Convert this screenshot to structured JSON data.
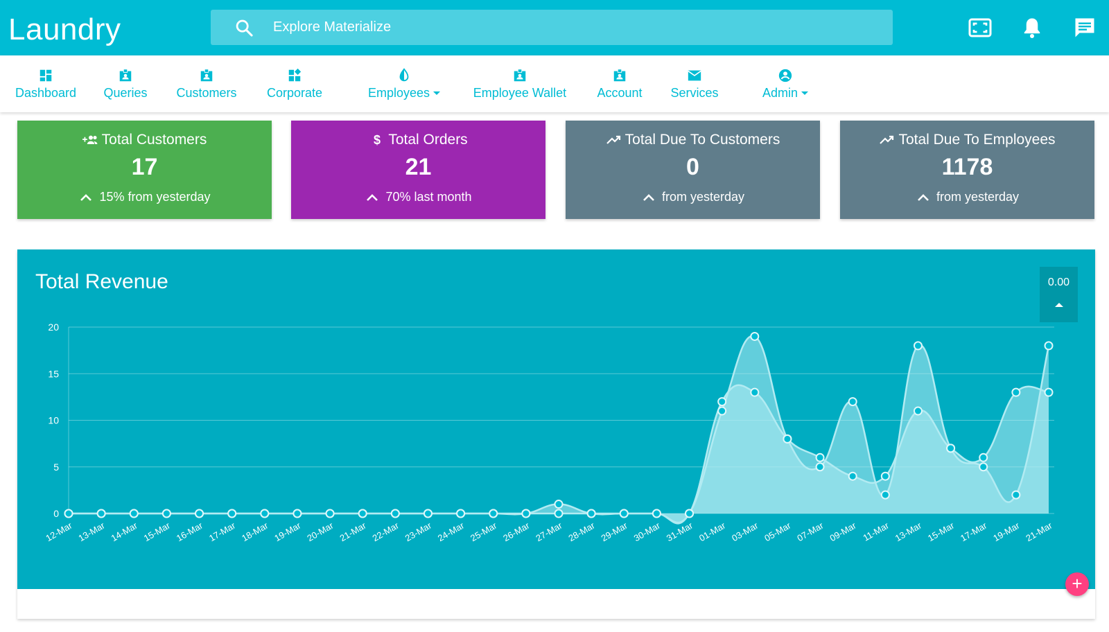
{
  "brand": "Laundry",
  "search": {
    "placeholder": "Explore Materialize"
  },
  "topbar_icons": [
    "fullscreen-icon",
    "bell-icon",
    "chat-icon"
  ],
  "nav": {
    "items": [
      {
        "label": "Dashboard",
        "icon": "dashboard-icon"
      },
      {
        "label": "Queries",
        "icon": "badge-icon"
      },
      {
        "label": "Customers",
        "icon": "badge-icon"
      },
      {
        "label": "Corporate",
        "icon": "widgets-icon"
      },
      {
        "label": "Employees",
        "icon": "invert-colors-icon",
        "dropdown": true
      },
      {
        "label": "Employee Wallet",
        "icon": "badge-icon"
      },
      {
        "label": "Account",
        "icon": "badge-icon"
      },
      {
        "label": "Services",
        "icon": "mail-icon"
      },
      {
        "label": "Admin",
        "icon": "account-circle-icon",
        "dropdown": true
      }
    ]
  },
  "cards": [
    {
      "title": "Total Customers",
      "value": "17",
      "sub": "15% from yesterday",
      "color": "#4caf50",
      "icon": "group-add-icon"
    },
    {
      "title": "Total Orders",
      "value": "21",
      "sub": "70% last month",
      "color": "#9c27b0",
      "icon": "dollar-icon"
    },
    {
      "title": "Total Due To Customers",
      "value": "0",
      "sub": "from yesterday",
      "color": "#607d8b",
      "icon": "trending-up-icon"
    },
    {
      "title": "Total Due To Employees",
      "value": "1178",
      "sub": "from yesterday",
      "color": "#607d8b",
      "icon": "trending-up-icon"
    }
  ],
  "revenue": {
    "title": "Total Revenue",
    "badge": "0.00",
    "fab": "+"
  },
  "chart_data": {
    "type": "area",
    "title": "Total Revenue",
    "xlabel": "",
    "ylabel": "",
    "ylim": [
      0,
      20
    ],
    "yticks": [
      0,
      5,
      10,
      15,
      20
    ],
    "grid": true,
    "categories": [
      "12-Mar",
      "13-Mar",
      "14-Mar",
      "15-Mar",
      "16-Mar",
      "17-Mar",
      "18-Mar",
      "19-Mar",
      "20-Mar",
      "21-Mar",
      "22-Mar",
      "23-Mar",
      "24-Mar",
      "25-Mar",
      "26-Mar",
      "27-Mar",
      "28-Mar",
      "29-Mar",
      "30-Mar",
      "31-Mar",
      "01-Mar",
      "03-Mar",
      "05-Mar",
      "07-Mar",
      "09-Mar",
      "11-Mar",
      "13-Mar",
      "15-Mar",
      "17-Mar",
      "19-Mar",
      "21-Mar"
    ],
    "series": [
      {
        "values": [
          0,
          0,
          0,
          0,
          0,
          0,
          0,
          0,
          0,
          0,
          0,
          0,
          0,
          0,
          0,
          1,
          0,
          0,
          0,
          0,
          11,
          19,
          8,
          5,
          12,
          2,
          18,
          7,
          5,
          2,
          18
        ]
      },
      {
        "values": [
          0,
          0,
          0,
          0,
          0,
          0,
          0,
          0,
          0,
          0,
          0,
          0,
          0,
          0,
          0,
          0,
          0,
          0,
          0,
          0,
          12,
          13,
          8,
          6,
          4,
          4,
          11,
          7,
          6,
          13,
          13
        ]
      }
    ],
    "colors": {
      "line": "#b2ebf2",
      "fill": "rgba(178,235,242,0.55)",
      "point_fill": "#00bcd4",
      "point_stroke": "#e0f7fa"
    }
  }
}
